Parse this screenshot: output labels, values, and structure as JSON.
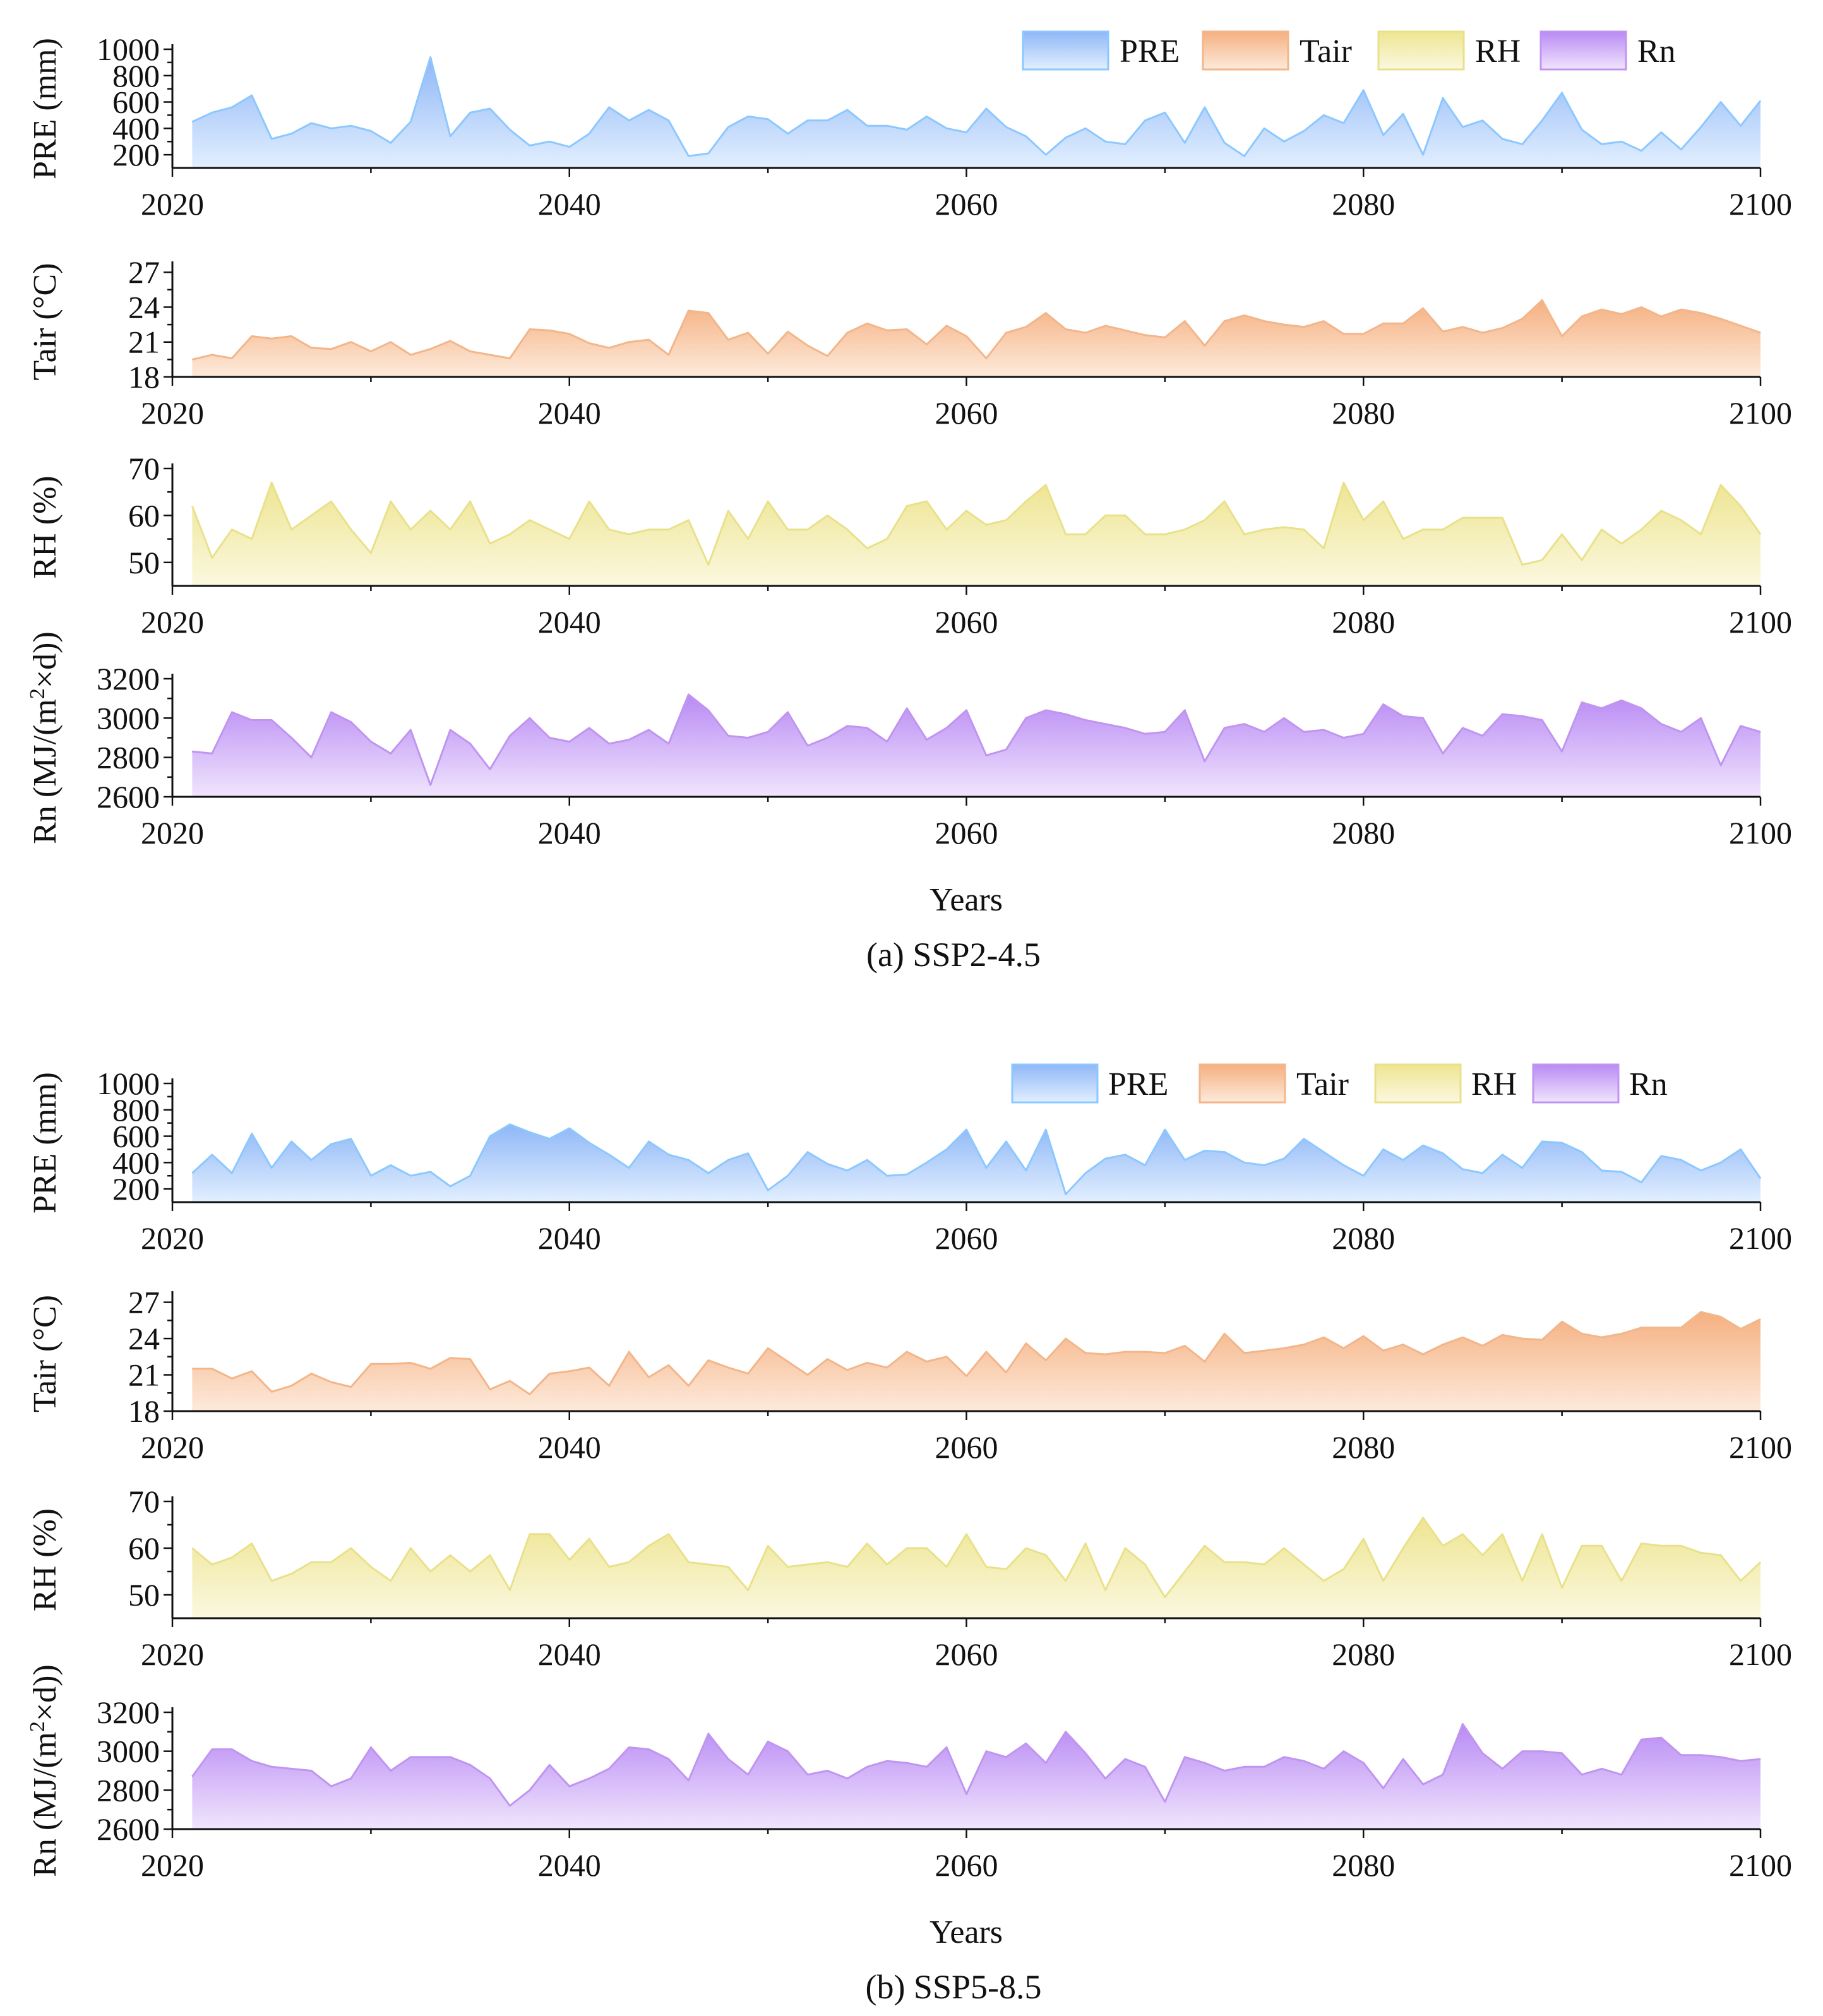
{
  "figure": {
    "xlabel": "Years",
    "legend": [
      "PRE",
      "Tair",
      "RH",
      "Rn"
    ],
    "colors": {
      "PRE": {
        "top": "#8fb7f6",
        "bottom": "#e2efff",
        "line": "#8cc8ff"
      },
      "Tair": {
        "top": "#f5b080",
        "bottom": "#fdeadb",
        "line": "#f2b68a"
      },
      "RH": {
        "top": "#eee592",
        "bottom": "#fbf8df",
        "line": "#e9e18a"
      },
      "Rn": {
        "top": "#b98af4",
        "bottom": "#f0e5fd",
        "line": "#c095f0"
      }
    }
  },
  "chart_data": [
    {
      "panel": "(a) SSP2-4.5",
      "caption": "(a) SSP2-4.5",
      "type": "area",
      "x": [
        2021,
        2022,
        2023,
        2024,
        2025,
        2026,
        2027,
        2028,
        2029,
        2030,
        2031,
        2032,
        2033,
        2034,
        2035,
        2036,
        2037,
        2038,
        2039,
        2040,
        2041,
        2042,
        2043,
        2044,
        2045,
        2046,
        2047,
        2048,
        2049,
        2050,
        2051,
        2052,
        2053,
        2054,
        2055,
        2056,
        2057,
        2058,
        2059,
        2060,
        2061,
        2062,
        2063,
        2064,
        2065,
        2066,
        2067,
        2068,
        2069,
        2070,
        2071,
        2072,
        2073,
        2074,
        2075,
        2076,
        2077,
        2078,
        2079,
        2080,
        2081,
        2082,
        2083,
        2084,
        2085,
        2086,
        2087,
        2088,
        2089,
        2090,
        2091,
        2092,
        2093,
        2094,
        2095,
        2096,
        2097,
        2098,
        2099,
        2100
      ],
      "xlim": [
        2020,
        2100
      ],
      "xticks": [
        2020,
        2040,
        2060,
        2080,
        2100
      ],
      "subplots": [
        {
          "name": "PRE",
          "ylabel": "PRE (mm)",
          "ylim": [
            100,
            1000
          ],
          "yticks": [
            200,
            400,
            600,
            800,
            1000
          ],
          "values": [
            450,
            520,
            560,
            650,
            320,
            360,
            440,
            400,
            420,
            380,
            290,
            450,
            940,
            340,
            520,
            550,
            390,
            270,
            300,
            260,
            360,
            560,
            460,
            540,
            460,
            190,
            210,
            410,
            490,
            470,
            360,
            460,
            460,
            540,
            420,
            420,
            390,
            490,
            400,
            370,
            550,
            410,
            340,
            200,
            330,
            400,
            300,
            280,
            460,
            520,
            290,
            560,
            290,
            190,
            400,
            300,
            380,
            500,
            440,
            690,
            350,
            510,
            200,
            630,
            410,
            460,
            320,
            280,
            460,
            670,
            390,
            280,
            300,
            230,
            370,
            240,
            410,
            600,
            420,
            610
          ]
        },
        {
          "name": "Tair",
          "ylabel": "Tair (°C)",
          "ylim": [
            18,
            27.5
          ],
          "yticks": [
            18,
            21,
            24,
            27
          ],
          "values": [
            19.5,
            19.9,
            19.6,
            21.5,
            21.3,
            21.5,
            20.5,
            20.4,
            21.0,
            20.2,
            21.0,
            19.9,
            20.4,
            21.1,
            20.2,
            19.9,
            19.6,
            22.1,
            22.0,
            21.7,
            20.9,
            20.5,
            21.0,
            21.2,
            19.9,
            23.7,
            23.5,
            21.2,
            21.8,
            20.0,
            21.9,
            20.7,
            19.8,
            21.8,
            22.6,
            22.0,
            22.1,
            20.8,
            22.4,
            21.5,
            19.6,
            21.8,
            22.3,
            23.5,
            22.1,
            21.8,
            22.4,
            22.0,
            21.6,
            21.4,
            22.8,
            20.7,
            22.8,
            23.3,
            22.8,
            22.5,
            22.3,
            22.8,
            21.7,
            21.7,
            22.6,
            22.6,
            23.9,
            21.9,
            22.3,
            21.8,
            22.2,
            23.0,
            24.6,
            21.5,
            23.2,
            23.8,
            23.4,
            24.0,
            23.2,
            23.8,
            23.5,
            23.0,
            22.4,
            21.8
          ]
        },
        {
          "name": "RH",
          "ylabel": "RH (%)",
          "ylim": [
            45,
            70
          ],
          "yticks": [
            50,
            60,
            70
          ],
          "values": [
            62,
            51,
            57,
            55,
            67,
            57,
            60,
            63,
            57,
            52,
            63,
            57,
            61,
            57,
            63,
            54,
            56,
            59,
            57,
            55,
            63,
            57,
            56,
            57,
            57,
            59,
            49.5,
            61,
            55,
            63,
            57,
            57,
            60,
            57,
            53,
            55,
            62,
            63,
            57,
            61,
            58,
            59,
            63,
            66.5,
            56,
            56,
            60,
            60,
            56,
            56,
            57,
            59,
            63,
            56,
            57,
            57.5,
            57,
            53,
            67,
            59,
            63,
            55,
            57,
            57,
            59.5,
            59.5,
            59.5,
            49.5,
            50.5,
            56,
            50.5,
            57,
            54,
            57,
            61,
            59,
            56,
            66.5,
            62,
            56
          ]
        },
        {
          "name": "Rn",
          "ylabel": "Rn (MJ/(m²×d))",
          "ylim": [
            2600,
            3200
          ],
          "yticks": [
            2600,
            2800,
            3000,
            3200
          ],
          "values": [
            2830,
            2820,
            3030,
            2990,
            2990,
            2900,
            2800,
            3030,
            2980,
            2880,
            2820,
            2940,
            2660,
            2940,
            2870,
            2740,
            2910,
            3000,
            2900,
            2880,
            2950,
            2870,
            2890,
            2940,
            2870,
            3120,
            3040,
            2910,
            2900,
            2930,
            3030,
            2860,
            2900,
            2960,
            2950,
            2880,
            3050,
            2890,
            2950,
            3040,
            2810,
            2840,
            3000,
            3040,
            3020,
            2990,
            2970,
            2950,
            2920,
            2930,
            3040,
            2780,
            2950,
            2970,
            2930,
            3000,
            2930,
            2940,
            2900,
            2920,
            3070,
            3010,
            3000,
            2820,
            2950,
            2910,
            3020,
            3010,
            2990,
            2830,
            3080,
            3050,
            3090,
            3050,
            2970,
            2930,
            3000,
            2760,
            2960,
            2930
          ]
        }
      ]
    },
    {
      "panel": "(b) SSP5-8.5",
      "caption": "(b) SSP5-8.5",
      "type": "area",
      "x": [
        2021,
        2022,
        2023,
        2024,
        2025,
        2026,
        2027,
        2028,
        2029,
        2030,
        2031,
        2032,
        2033,
        2034,
        2035,
        2036,
        2037,
        2038,
        2039,
        2040,
        2041,
        2042,
        2043,
        2044,
        2045,
        2046,
        2047,
        2048,
        2049,
        2050,
        2051,
        2052,
        2053,
        2054,
        2055,
        2056,
        2057,
        2058,
        2059,
        2060,
        2061,
        2062,
        2063,
        2064,
        2065,
        2066,
        2067,
        2068,
        2069,
        2070,
        2071,
        2072,
        2073,
        2074,
        2075,
        2076,
        2077,
        2078,
        2079,
        2080,
        2081,
        2082,
        2083,
        2084,
        2085,
        2086,
        2087,
        2088,
        2089,
        2090,
        2091,
        2092,
        2093,
        2094,
        2095,
        2096,
        2097,
        2098,
        2099,
        2100
      ],
      "xlim": [
        2020,
        2100
      ],
      "xticks": [
        2020,
        2040,
        2060,
        2080,
        2100
      ],
      "subplots": [
        {
          "name": "PRE",
          "ylabel": "PRE (mm)",
          "ylim": [
            100,
            1000
          ],
          "yticks": [
            200,
            400,
            600,
            800,
            1000
          ],
          "values": [
            320,
            460,
            320,
            620,
            360,
            560,
            420,
            540,
            580,
            300,
            380,
            300,
            330,
            220,
            300,
            600,
            690,
            630,
            580,
            660,
            550,
            460,
            360,
            560,
            460,
            420,
            320,
            420,
            470,
            190,
            300,
            480,
            390,
            340,
            420,
            300,
            310,
            400,
            500,
            650,
            360,
            560,
            340,
            650,
            160,
            320,
            430,
            460,
            380,
            650,
            420,
            490,
            480,
            400,
            380,
            430,
            580,
            480,
            380,
            300,
            500,
            420,
            530,
            470,
            350,
            320,
            460,
            360,
            560,
            550,
            480,
            340,
            330,
            250,
            450,
            420,
            340,
            400,
            500,
            280
          ]
        },
        {
          "name": "Tair",
          "ylabel": "Tair (°C)",
          "ylim": [
            18,
            27.5
          ],
          "yticks": [
            18,
            21,
            24,
            27
          ],
          "values": [
            21.5,
            21.5,
            20.7,
            21.3,
            19.6,
            20.1,
            21.1,
            20.4,
            20.0,
            21.9,
            21.9,
            22.0,
            21.5,
            22.4,
            22.3,
            19.8,
            20.5,
            19.4,
            21.1,
            21.3,
            21.6,
            20.1,
            22.9,
            20.8,
            21.8,
            20.1,
            22.2,
            21.6,
            21.1,
            23.2,
            22.1,
            21.0,
            22.3,
            21.4,
            22.0,
            21.6,
            22.9,
            22.1,
            22.5,
            20.9,
            22.9,
            21.2,
            23.6,
            22.2,
            24.0,
            22.8,
            22.7,
            22.9,
            22.9,
            22.8,
            23.4,
            22.1,
            24.4,
            22.8,
            23.0,
            23.2,
            23.5,
            24.1,
            23.2,
            24.2,
            23.0,
            23.5,
            22.7,
            23.5,
            24.1,
            23.4,
            24.3,
            24.0,
            23.9,
            25.4,
            24.4,
            24.1,
            24.4,
            24.9,
            24.9,
            24.9,
            26.2,
            25.8,
            24.8,
            25.6
          ]
        },
        {
          "name": "RH",
          "ylabel": "RH (%)",
          "ylim": [
            45,
            70
          ],
          "yticks": [
            50,
            60,
            70
          ],
          "values": [
            60,
            56.5,
            58,
            61,
            53,
            54.5,
            57,
            57,
            60,
            56,
            53,
            60,
            55,
            58.5,
            55,
            58.5,
            51,
            63,
            63,
            57.5,
            62,
            56,
            57,
            60.5,
            63,
            57,
            56.5,
            56,
            51,
            60.5,
            56,
            56.5,
            57,
            56,
            61,
            56.5,
            60,
            60,
            56,
            63,
            56,
            55.5,
            60,
            58.5,
            53,
            61,
            51,
            60,
            56.5,
            49.5,
            55,
            60.5,
            57,
            57,
            56.5,
            60,
            56.5,
            53,
            55.5,
            62,
            53,
            60,
            66.5,
            60.5,
            63,
            58.5,
            63,
            53,
            63,
            51.5,
            60.5,
            60.5,
            53,
            61,
            60.5,
            60.5,
            59,
            58.5,
            53,
            57
          ]
        },
        {
          "name": "Rn",
          "ylabel": "Rn (MJ/(m²×d))",
          "ylim": [
            2600,
            3200
          ],
          "yticks": [
            2600,
            2800,
            3000,
            3200
          ],
          "values": [
            2870,
            3010,
            3010,
            2950,
            2920,
            2910,
            2900,
            2820,
            2860,
            3020,
            2900,
            2970,
            2970,
            2970,
            2930,
            2860,
            2720,
            2800,
            2930,
            2820,
            2860,
            2910,
            3020,
            3010,
            2960,
            2850,
            3090,
            2960,
            2880,
            3050,
            3000,
            2880,
            2900,
            2860,
            2920,
            2950,
            2940,
            2920,
            3020,
            2780,
            3000,
            2970,
            3040,
            2940,
            3100,
            2990,
            2860,
            2960,
            2920,
            2740,
            2970,
            2940,
            2900,
            2920,
            2920,
            2970,
            2950,
            2910,
            3000,
            2940,
            2810,
            2960,
            2830,
            2880,
            3140,
            2990,
            2910,
            3000,
            3000,
            2990,
            2880,
            2910,
            2880,
            3060,
            3070,
            2980,
            2980,
            2970,
            2950,
            2960
          ]
        }
      ]
    }
  ]
}
